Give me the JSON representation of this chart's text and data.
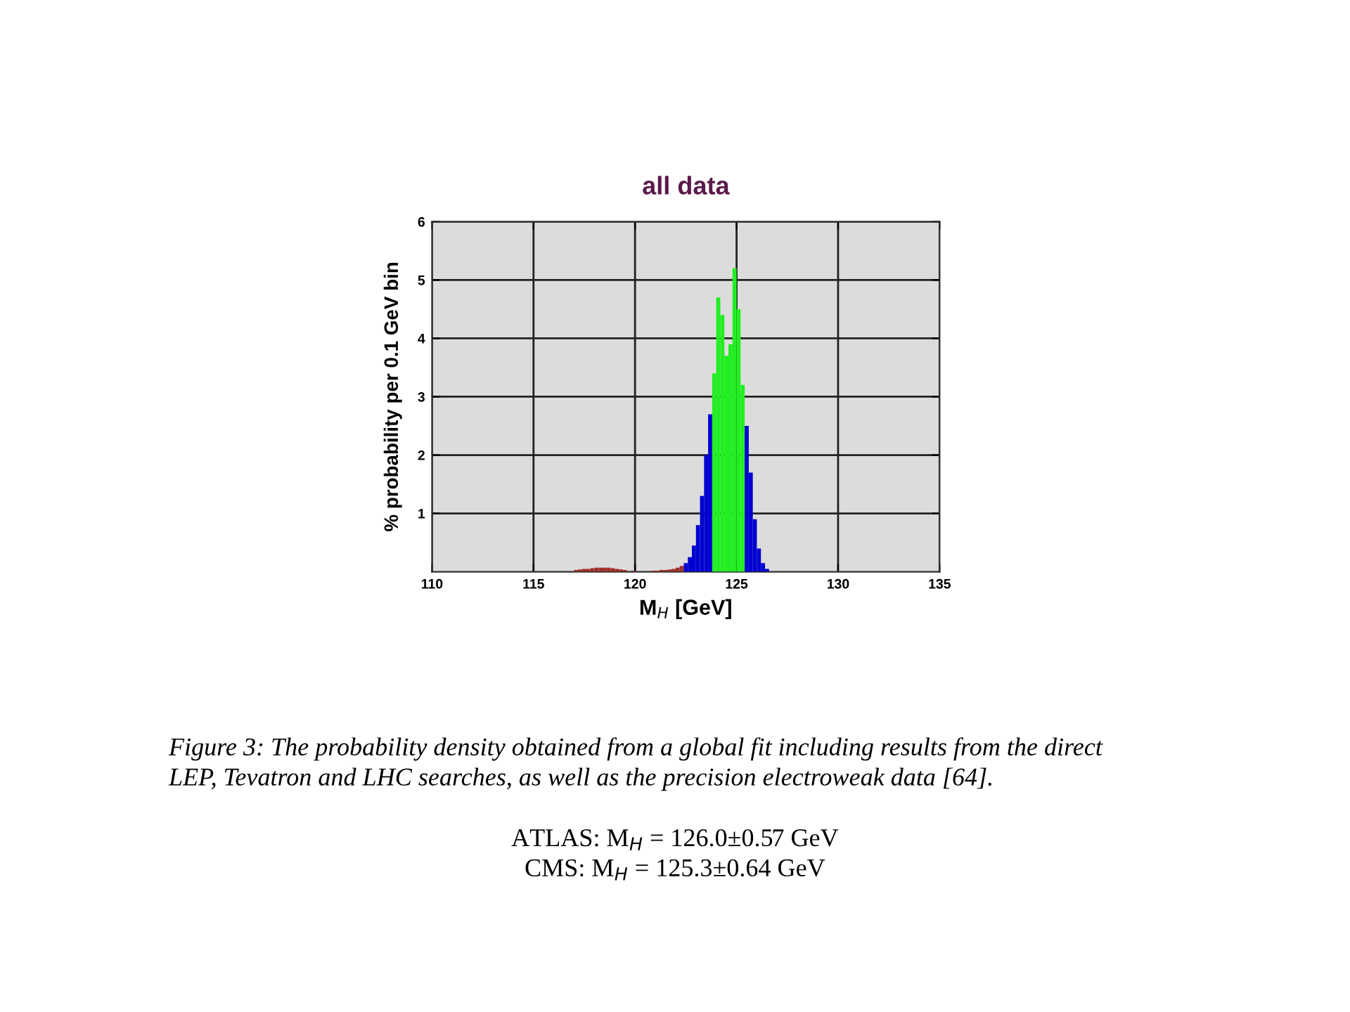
{
  "chart_data": {
    "type": "histogram",
    "title": "all data",
    "xlabel": "M$_{H}$ [GeV]",
    "ylabel": "% probability per 0.1 GeV bin",
    "bins": [
      117.0,
      117.2,
      117.4,
      117.6,
      117.8,
      118.0,
      118.2,
      118.4,
      118.6,
      118.8,
      119.0,
      119.2,
      119.4,
      119.6,
      119.8,
      120.0,
      120.2,
      120.4,
      120.6,
      120.8,
      121.0,
      121.2,
      121.4,
      121.6,
      121.8,
      122.0,
      122.2,
      122.4,
      122.6,
      122.8,
      123.0,
      123.2,
      123.4,
      123.6,
      123.8,
      124.0,
      124.2,
      124.4,
      124.6,
      124.8,
      125.0,
      125.2,
      125.4,
      125.6,
      125.8,
      126.0,
      126.2,
      126.4,
      126.6
    ],
    "values": [
      0.03,
      0.04,
      0.05,
      0.05,
      0.06,
      0.07,
      0.07,
      0.07,
      0.07,
      0.06,
      0.05,
      0.04,
      0.03,
      null,
      0.02,
      null,
      null,
      null,
      null,
      0.02,
      0.02,
      0.03,
      0.03,
      0.04,
      0.05,
      0.07,
      0.1,
      0.15,
      0.25,
      0.45,
      0.8,
      1.3,
      2.0,
      2.7,
      3.4,
      4.7,
      4.4,
      3.7,
      3.9,
      5.2,
      4.5,
      3.2,
      2.5,
      1.7,
      0.9,
      0.4,
      0.15,
      0.05
    ],
    "colors": [
      "#a0302a",
      "#a0302a",
      "#a0302a",
      "#a0302a",
      "#a0302a",
      "#a0302a",
      "#a0302a",
      "#a0302a",
      "#a0302a",
      "#a0302a",
      "#a0302a",
      "#a0302a",
      "#a0302a",
      "#a0302a",
      "#a0302a",
      "#a0302a",
      "#a0302a",
      "#a0302a",
      "#a0302a",
      "#a0302a",
      "#a0302a",
      "#a0302a",
      "#a0302a",
      "#a0302a",
      "#a0302a",
      "#a0302a",
      "#a0302a",
      "#0000d0",
      "#0000d0",
      "#0000d0",
      "#0000d0",
      "#0000d0",
      "#0000d0",
      "#0000d0",
      "#22ee22",
      "#22ee22",
      "#22ee22",
      "#22ee22",
      "#22ee22",
      "#22ee22",
      "#22ee22",
      "#22ee22",
      "#0000d0",
      "#0000d0",
      "#0000d0",
      "#0000d0",
      "#0000d0",
      "#0000d0"
    ],
    "xlim": [
      110,
      135
    ],
    "xticks": [
      110,
      115,
      120,
      125,
      130,
      135
    ],
    "ylim": [
      0,
      6
    ],
    "yticks": [
      1,
      2,
      3,
      4,
      5,
      6
    ],
    "grid": true,
    "annotations": [
      "Figure 3: The probability density obtained from a global fit including results from the direct\nLEP, Tevatron and LHC searches, as well as the precision electroweak data [64].",
      "ATLAS: M$_{H}$ = 126.0±0.57 GeV\nCMS: M$_{H}$ = 125.3±0.64 GeV"
    ]
  }
}
